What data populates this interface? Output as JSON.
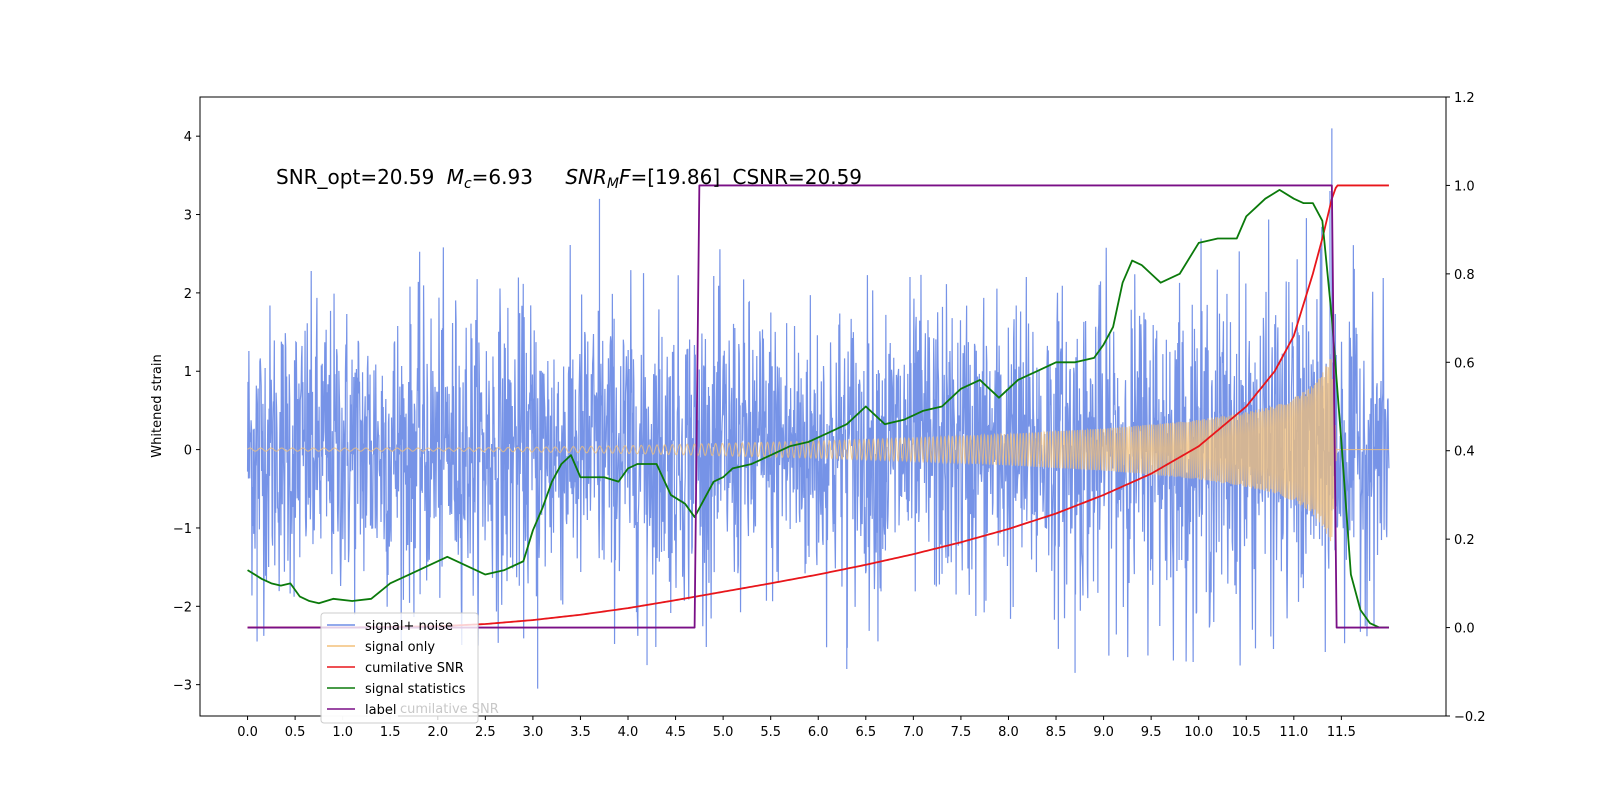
{
  "chart_data": {
    "type": "line",
    "title": "",
    "annotation": {
      "snr_opt": "SNR_opt=20.59",
      "mc": "=6.93",
      "snr_mf": "=[19.86]",
      "csnr": "CSNR=20.59"
    },
    "xlabel": "",
    "ylabel": "Whitened strain",
    "y2label": "",
    "xlim": [
      -0.5,
      12.6
    ],
    "ylim": [
      -3.4,
      4.5
    ],
    "y2lim": [
      -0.2,
      1.2
    ],
    "xticks": [
      "0.0",
      "0.5",
      "1.0",
      "1.5",
      "2.0",
      "2.5",
      "3.0",
      "3.5",
      "4.0",
      "4.5",
      "5.0",
      "5.5",
      "6.0",
      "6.5",
      "7.0",
      "7.5",
      "8.0",
      "8.5",
      "9.0",
      "9.5",
      "10.0",
      "10.5",
      "11.0",
      "11.5"
    ],
    "yticks": [
      "−3",
      "−2",
      "−1",
      "0",
      "1",
      "2",
      "3",
      "4"
    ],
    "y2ticks": [
      "−0.2",
      "0.0",
      "0.2",
      "0.4",
      "0.6",
      "0.8",
      "1.0",
      "1.2"
    ],
    "grid": false,
    "legend_position": "lower-left",
    "legend": [
      "signal+ noise",
      "signal only",
      "cumilative SNR",
      "signal statistics",
      "label"
    ],
    "legend_ghost_text": "cumilative SNR",
    "colors": {
      "signal_noise": "#6f8de6",
      "signal_only": "#f3c07a",
      "cumulative_snr": "#e8161b",
      "signal_statistics": "#0b7a0b",
      "label": "#7a0f86"
    },
    "series": [
      {
        "name": "signal+ noise",
        "axis": "left",
        "description_x_range": [
          0.0,
          12.0
        ],
        "envelope_upper": [
          [
            0.0,
            2.4
          ],
          [
            3.0,
            2.5
          ],
          [
            6.0,
            2.4
          ],
          [
            9.0,
            2.6
          ],
          [
            11.3,
            3.0
          ],
          [
            12.0,
            2.0
          ]
        ],
        "envelope_lower": [
          [
            0.0,
            -2.3
          ],
          [
            3.0,
            -2.4
          ],
          [
            6.0,
            -2.4
          ],
          [
            9.0,
            -2.5
          ],
          [
            11.3,
            -2.7
          ],
          [
            12.0,
            -2.2
          ]
        ],
        "outliers": [
          [
            0.1,
            -2.45
          ],
          [
            3.05,
            -3.05
          ],
          [
            3.7,
            3.2
          ],
          [
            4.2,
            -2.75
          ],
          [
            6.3,
            -2.8
          ],
          [
            8.7,
            -2.85
          ],
          [
            11.4,
            4.1
          ],
          [
            11.38,
            3.3
          ]
        ]
      },
      {
        "name": "signal only",
        "axis": "left",
        "x": [
          0.0,
          1.0,
          2.0,
          3.0,
          4.0,
          5.0,
          6.0,
          7.0,
          8.0,
          9.0,
          9.5,
          10.0,
          10.5,
          10.8,
          11.0,
          11.2,
          11.3,
          11.35,
          11.4,
          11.45,
          12.0
        ],
        "amplitude": [
          0.02,
          0.02,
          0.02,
          0.03,
          0.05,
          0.08,
          0.11,
          0.15,
          0.2,
          0.27,
          0.32,
          0.38,
          0.48,
          0.56,
          0.66,
          0.82,
          0.98,
          1.1,
          1.2,
          0.0,
          0.0
        ]
      },
      {
        "name": "cumilative SNR",
        "axis": "right",
        "x": [
          0.0,
          1.0,
          2.0,
          2.5,
          3.0,
          3.5,
          4.0,
          4.5,
          5.0,
          5.5,
          6.0,
          6.5,
          7.0,
          7.5,
          8.0,
          8.5,
          9.0,
          9.5,
          10.0,
          10.5,
          10.8,
          11.0,
          11.2,
          11.3,
          11.4,
          11.45,
          12.0
        ],
        "values": [
          0.0,
          0.0,
          0.003,
          0.008,
          0.017,
          0.029,
          0.044,
          0.062,
          0.081,
          0.1,
          0.12,
          0.142,
          0.166,
          0.193,
          0.223,
          0.258,
          0.3,
          0.348,
          0.41,
          0.5,
          0.58,
          0.66,
          0.8,
          0.88,
          0.97,
          1.0,
          1.0
        ]
      },
      {
        "name": "signal statistics",
        "axis": "right",
        "x": [
          0.0,
          0.15,
          0.25,
          0.35,
          0.45,
          0.55,
          0.65,
          0.75,
          0.9,
          1.1,
          1.3,
          1.5,
          1.7,
          1.9,
          2.1,
          2.3,
          2.5,
          2.7,
          2.9,
          3.0,
          3.1,
          3.2,
          3.3,
          3.4,
          3.5,
          3.6,
          3.75,
          3.9,
          4.0,
          4.1,
          4.3,
          4.45,
          4.6,
          4.7,
          4.8,
          4.9,
          5.0,
          5.1,
          5.3,
          5.5,
          5.7,
          5.9,
          6.1,
          6.3,
          6.5,
          6.7,
          6.9,
          7.1,
          7.3,
          7.5,
          7.7,
          7.9,
          8.1,
          8.3,
          8.5,
          8.7,
          8.9,
          9.0,
          9.1,
          9.2,
          9.3,
          9.4,
          9.5,
          9.6,
          9.8,
          10.0,
          10.2,
          10.4,
          10.5,
          10.6,
          10.7,
          10.85,
          11.0,
          11.1,
          11.2,
          11.3,
          11.4,
          11.5,
          11.6,
          11.7,
          11.8,
          11.9,
          12.0
        ],
        "values": [
          0.13,
          0.11,
          0.1,
          0.095,
          0.1,
          0.07,
          0.06,
          0.055,
          0.065,
          0.06,
          0.065,
          0.1,
          0.12,
          0.14,
          0.16,
          0.14,
          0.12,
          0.13,
          0.15,
          0.22,
          0.27,
          0.33,
          0.37,
          0.39,
          0.34,
          0.34,
          0.34,
          0.33,
          0.36,
          0.37,
          0.37,
          0.3,
          0.28,
          0.25,
          0.29,
          0.33,
          0.34,
          0.36,
          0.37,
          0.39,
          0.41,
          0.42,
          0.44,
          0.46,
          0.5,
          0.46,
          0.47,
          0.49,
          0.5,
          0.54,
          0.56,
          0.52,
          0.56,
          0.58,
          0.6,
          0.6,
          0.61,
          0.64,
          0.68,
          0.78,
          0.83,
          0.82,
          0.8,
          0.78,
          0.8,
          0.87,
          0.88,
          0.88,
          0.93,
          0.95,
          0.97,
          0.99,
          0.97,
          0.96,
          0.96,
          0.92,
          0.7,
          0.42,
          0.12,
          0.04,
          0.01,
          0.0,
          0.0
        ]
      },
      {
        "name": "label",
        "axis": "right",
        "x": [
          0.0,
          4.7,
          4.75,
          11.4,
          11.45,
          12.0
        ],
        "values": [
          0.0,
          0.0,
          1.0,
          1.0,
          0.0,
          0.0
        ]
      }
    ]
  }
}
